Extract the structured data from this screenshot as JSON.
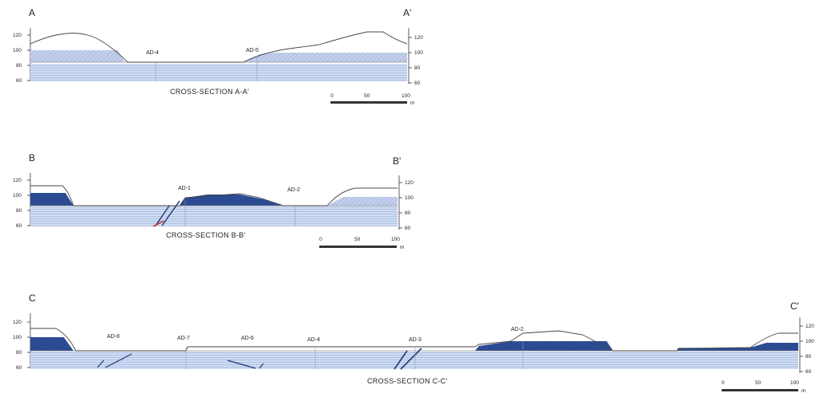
{
  "sections": [
    {
      "id": "A",
      "label_left": "A",
      "label_right": "A'",
      "title": "CROSS-SECTION A-A'",
      "ticks_left": [
        "120",
        "100",
        "80",
        "60"
      ],
      "ticks_right": [
        "120",
        "100",
        "80",
        "60"
      ],
      "boreholes": [
        "AD-4",
        "AD-5"
      ],
      "scale": {
        "labels": [
          "0",
          "50",
          "100"
        ],
        "unit": "m"
      }
    },
    {
      "id": "B",
      "label_left": "B",
      "label_right": "B'",
      "title": "CROSS-SECTION B-B'",
      "ticks_left": [
        "120",
        "100",
        "80",
        "60"
      ],
      "ticks_right": [
        "120",
        "100",
        "80",
        "60"
      ],
      "boreholes": [
        "AD-1",
        "AD-2"
      ],
      "scale": {
        "labels": [
          "0",
          "50",
          "100"
        ],
        "unit": "m"
      }
    },
    {
      "id": "C",
      "label_left": "C",
      "label_right": "C'",
      "title": "CROSS-SECTION C-C'",
      "ticks_left": [
        "120",
        "100",
        "80",
        "60"
      ],
      "ticks_right": [
        "120",
        "100",
        "80",
        "60"
      ],
      "boreholes": [
        "AD-8",
        "AD-7",
        "AD-6",
        "AD-4",
        "AD-3",
        "AD-2"
      ],
      "scale": {
        "labels": [
          "0",
          "50",
          "100"
        ],
        "unit": "m"
      }
    }
  ],
  "colors": {
    "light_layer": "#c6d4ee",
    "dark_layer": "#2e4f97",
    "hatch_layer": "#b9c7e6",
    "fault_red": "#c23a3a"
  }
}
